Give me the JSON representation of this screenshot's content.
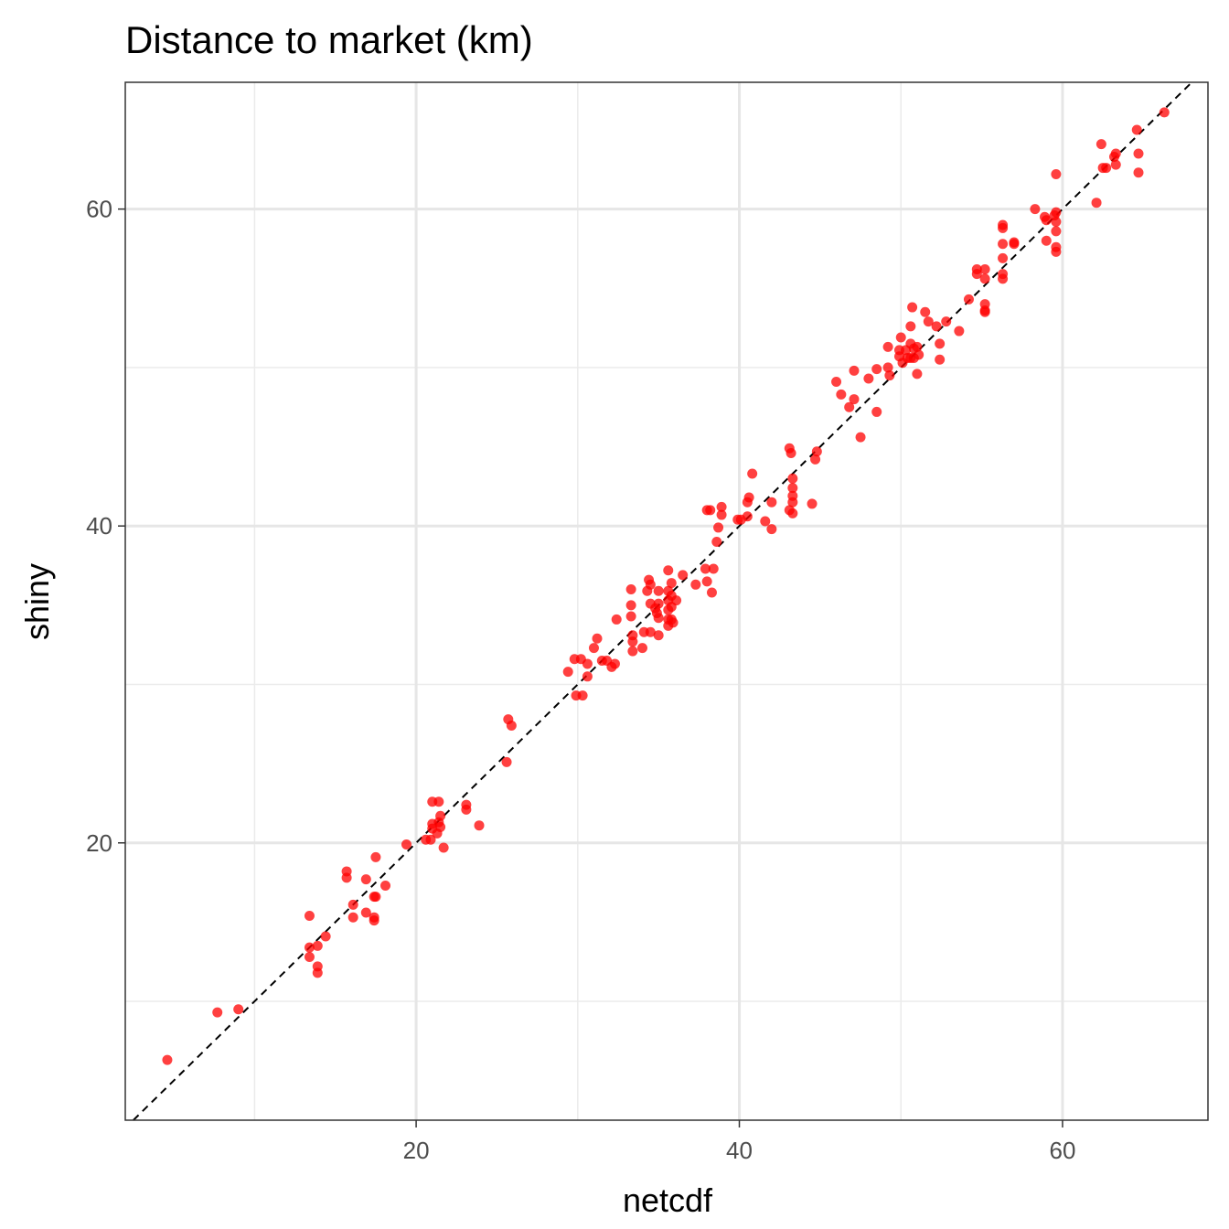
{
  "chart_data": {
    "type": "scatter",
    "title": "Distance to market (km)",
    "xlabel": "netcdf",
    "ylabel": "shiny",
    "xlim": [
      2.0,
      69.0
    ],
    "ylim": [
      2.5,
      68.0
    ],
    "x_ticks": [
      20,
      40,
      60
    ],
    "y_ticks": [
      20,
      40,
      60
    ],
    "x_minor_ticks": [
      10,
      30,
      50
    ],
    "y_minor_ticks": [
      10,
      30,
      50
    ],
    "grid": true,
    "point_color": "#ff0000",
    "reference_line": {
      "type": "identity",
      "style": "dashed",
      "color": "#000000"
    },
    "points": [
      [
        4.6,
        6.3
      ],
      [
        7.7,
        9.3
      ],
      [
        9.0,
        9.5
      ],
      [
        13.4,
        15.4
      ],
      [
        13.4,
        13.4
      ],
      [
        13.4,
        12.8
      ],
      [
        13.9,
        12.2
      ],
      [
        13.9,
        11.8
      ],
      [
        13.9,
        13.5
      ],
      [
        14.4,
        14.1
      ],
      [
        15.7,
        18.2
      ],
      [
        15.7,
        17.8
      ],
      [
        16.1,
        16.1
      ],
      [
        16.1,
        15.3
      ],
      [
        16.9,
        17.7
      ],
      [
        16.9,
        15.6
      ],
      [
        17.4,
        16.6
      ],
      [
        17.4,
        15.1
      ],
      [
        17.4,
        15.3
      ],
      [
        17.5,
        19.1
      ],
      [
        17.5,
        16.6
      ],
      [
        18.1,
        17.3
      ],
      [
        19.4,
        19.9
      ],
      [
        20.6,
        20.2
      ],
      [
        20.9,
        20.2
      ],
      [
        21.0,
        20.9
      ],
      [
        21.0,
        21.2
      ],
      [
        21.0,
        22.6
      ],
      [
        21.3,
        20.6
      ],
      [
        21.4,
        21.3
      ],
      [
        21.4,
        22.6
      ],
      [
        21.5,
        21.0
      ],
      [
        21.5,
        21.7
      ],
      [
        21.7,
        19.7
      ],
      [
        23.1,
        22.4
      ],
      [
        23.1,
        22.1
      ],
      [
        23.9,
        21.1
      ],
      [
        25.6,
        25.1
      ],
      [
        25.7,
        27.8
      ],
      [
        25.9,
        27.4
      ],
      [
        29.4,
        30.8
      ],
      [
        29.8,
        31.6
      ],
      [
        29.9,
        29.3
      ],
      [
        30.2,
        31.6
      ],
      [
        30.3,
        29.3
      ],
      [
        30.6,
        30.5
      ],
      [
        30.6,
        31.3
      ],
      [
        31.0,
        32.3
      ],
      [
        31.2,
        32.9
      ],
      [
        31.5,
        31.5
      ],
      [
        31.8,
        31.5
      ],
      [
        32.1,
        31.1
      ],
      [
        32.3,
        31.3
      ],
      [
        32.4,
        34.1
      ],
      [
        33.3,
        36.0
      ],
      [
        33.3,
        35.0
      ],
      [
        33.3,
        34.3
      ],
      [
        33.4,
        33.1
      ],
      [
        33.4,
        32.7
      ],
      [
        33.4,
        32.1
      ],
      [
        34.0,
        32.3
      ],
      [
        34.1,
        33.3
      ],
      [
        34.3,
        35.9
      ],
      [
        34.4,
        36.6
      ],
      [
        34.5,
        35.1
      ],
      [
        34.5,
        36.3
      ],
      [
        34.5,
        33.3
      ],
      [
        34.8,
        34.8
      ],
      [
        34.9,
        34.5
      ],
      [
        35.0,
        35.9
      ],
      [
        35.0,
        35.1
      ],
      [
        35.0,
        34.2
      ],
      [
        35.0,
        33.1
      ],
      [
        35.6,
        37.2
      ],
      [
        35.6,
        35.9
      ],
      [
        35.6,
        35.3
      ],
      [
        35.6,
        34.7
      ],
      [
        35.6,
        34.1
      ],
      [
        35.6,
        33.7
      ],
      [
        35.8,
        36.4
      ],
      [
        35.8,
        35.6
      ],
      [
        35.8,
        34.9
      ],
      [
        35.8,
        34.1
      ],
      [
        35.9,
        33.9
      ],
      [
        36.1,
        35.3
      ],
      [
        36.5,
        36.9
      ],
      [
        37.3,
        36.3
      ],
      [
        37.9,
        37.3
      ],
      [
        38.0,
        36.5
      ],
      [
        38.0,
        41.0
      ],
      [
        38.2,
        41.0
      ],
      [
        38.3,
        35.8
      ],
      [
        38.4,
        37.3
      ],
      [
        38.6,
        39.0
      ],
      [
        38.7,
        39.9
      ],
      [
        38.9,
        40.7
      ],
      [
        38.9,
        41.2
      ],
      [
        39.9,
        40.4
      ],
      [
        40.1,
        40.4
      ],
      [
        40.5,
        41.5
      ],
      [
        40.5,
        40.6
      ],
      [
        40.6,
        41.8
      ],
      [
        40.8,
        43.3
      ],
      [
        41.6,
        40.3
      ],
      [
        42.0,
        41.5
      ],
      [
        42.0,
        39.8
      ],
      [
        43.1,
        44.9
      ],
      [
        43.1,
        41.0
      ],
      [
        43.2,
        44.6
      ],
      [
        43.3,
        43.0
      ],
      [
        43.3,
        42.4
      ],
      [
        43.3,
        41.9
      ],
      [
        43.3,
        41.5
      ],
      [
        43.3,
        40.8
      ],
      [
        44.5,
        41.4
      ],
      [
        44.7,
        44.2
      ],
      [
        44.8,
        44.7
      ],
      [
        46.0,
        49.1
      ],
      [
        46.3,
        48.3
      ],
      [
        46.8,
        47.5
      ],
      [
        47.1,
        49.8
      ],
      [
        47.1,
        48.0
      ],
      [
        47.5,
        45.6
      ],
      [
        48.0,
        49.3
      ],
      [
        48.5,
        49.9
      ],
      [
        48.5,
        47.2
      ],
      [
        49.2,
        50.0
      ],
      [
        49.2,
        51.3
      ],
      [
        49.3,
        49.5
      ],
      [
        49.9,
        51.1
      ],
      [
        49.9,
        50.7
      ],
      [
        50.0,
        51.9
      ],
      [
        50.1,
        50.3
      ],
      [
        50.3,
        51.1
      ],
      [
        50.4,
        50.6
      ],
      [
        50.6,
        52.6
      ],
      [
        50.6,
        51.5
      ],
      [
        50.6,
        50.6
      ],
      [
        50.7,
        53.8
      ],
      [
        50.8,
        51.2
      ],
      [
        50.8,
        50.6
      ],
      [
        51.0,
        51.3
      ],
      [
        51.0,
        49.6
      ],
      [
        51.1,
        50.8
      ],
      [
        51.5,
        53.5
      ],
      [
        51.7,
        52.9
      ],
      [
        52.2,
        52.6
      ],
      [
        52.4,
        51.5
      ],
      [
        52.4,
        50.5
      ],
      [
        52.8,
        52.9
      ],
      [
        53.6,
        52.3
      ],
      [
        54.2,
        54.3
      ],
      [
        54.7,
        55.9
      ],
      [
        54.7,
        56.2
      ],
      [
        55.2,
        56.2
      ],
      [
        55.2,
        55.6
      ],
      [
        55.2,
        54.0
      ],
      [
        55.2,
        53.6
      ],
      [
        55.2,
        53.5
      ],
      [
        56.3,
        59.0
      ],
      [
        56.3,
        58.8
      ],
      [
        56.3,
        57.8
      ],
      [
        56.3,
        56.9
      ],
      [
        56.3,
        55.9
      ],
      [
        56.3,
        55.6
      ],
      [
        57.0,
        57.9
      ],
      [
        57.0,
        57.8
      ],
      [
        58.3,
        60.0
      ],
      [
        58.9,
        59.5
      ],
      [
        59.0,
        59.3
      ],
      [
        59.0,
        58.0
      ],
      [
        59.5,
        59.6
      ],
      [
        59.6,
        59.8
      ],
      [
        59.6,
        62.2
      ],
      [
        59.6,
        59.2
      ],
      [
        59.6,
        58.6
      ],
      [
        59.6,
        57.6
      ],
      [
        59.6,
        57.3
      ],
      [
        62.1,
        60.4
      ],
      [
        62.4,
        64.1
      ],
      [
        62.5,
        62.6
      ],
      [
        62.7,
        62.6
      ],
      [
        63.2,
        63.3
      ],
      [
        63.3,
        63.5
      ],
      [
        63.3,
        62.8
      ],
      [
        64.6,
        65.0
      ],
      [
        64.7,
        63.5
      ],
      [
        64.7,
        62.3
      ],
      [
        66.3,
        66.1
      ]
    ]
  }
}
